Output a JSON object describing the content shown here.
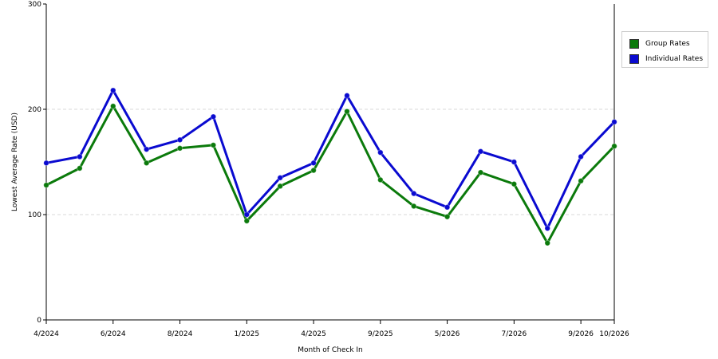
{
  "chart_data": {
    "type": "line",
    "title": "",
    "xlabel": "Month of Check In",
    "ylabel": "Lowest Average Rate (USD)",
    "ylim": [
      0,
      300
    ],
    "yticks": [
      0,
      100,
      200,
      300
    ],
    "grid": true,
    "legend_position": "right",
    "x_tick_labels": [
      "4/2024",
      "6/2024",
      "8/2024",
      "1/2025",
      "4/2025",
      "9/2025",
      "5/2026",
      "7/2026",
      "9/2026",
      "10/2026"
    ],
    "x_tick_indices": [
      0,
      2,
      4,
      6,
      8,
      10,
      12,
      14,
      16,
      17
    ],
    "series": [
      {
        "name": "Group Rates",
        "color": "#0b7a0b",
        "values": [
          128,
          144,
          203,
          149,
          163,
          166,
          94,
          127,
          142,
          198,
          133,
          108,
          98,
          140,
          129,
          73,
          132,
          165
        ]
      },
      {
        "name": "Individual Rates",
        "color": "#0a0ad0",
        "values": [
          149,
          155,
          218,
          162,
          171,
          193,
          100,
          135,
          149,
          213,
          159,
          120,
          107,
          160,
          150,
          87,
          155,
          188
        ]
      }
    ]
  }
}
